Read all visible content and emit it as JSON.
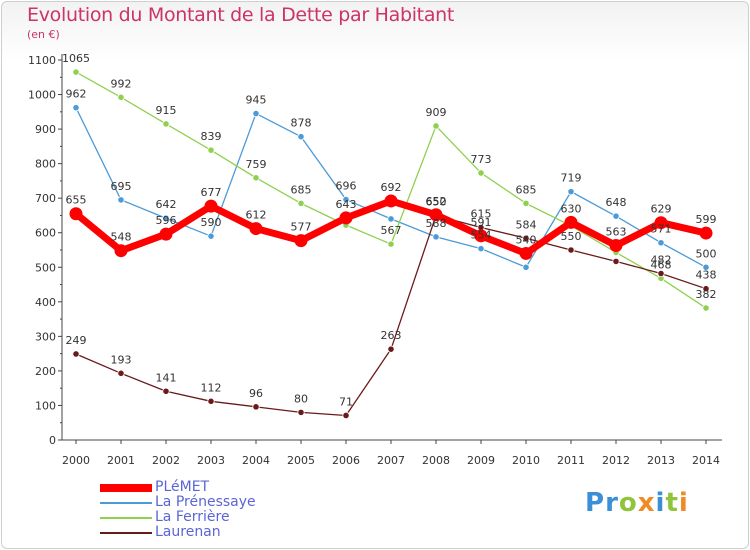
{
  "title": "Evolution du Montant de la Dette par Habitant",
  "subtitle": "(en €)",
  "logo": {
    "text": "Proxiti",
    "letters": [
      {
        "char": "P",
        "color": "#3a8fd8"
      },
      {
        "char": "r",
        "color": "#3a8fd8"
      },
      {
        "char": "o",
        "color": "#8fc43c"
      },
      {
        "char": "x",
        "color": "#f08a24"
      },
      {
        "char": "i",
        "color": "#3a8fd8"
      },
      {
        "char": "t",
        "color": "#8fc43c"
      },
      {
        "char": "i",
        "color": "#f08a24"
      }
    ]
  },
  "chart_data": {
    "type": "line",
    "title": "Evolution du Montant de la Dette par Habitant",
    "subtitle": "(en €)",
    "x": [
      "2000",
      "2001",
      "2002",
      "2003",
      "2004",
      "2005",
      "2006",
      "2007",
      "2008",
      "2009",
      "2010",
      "2011",
      "2012",
      "2013",
      "2014"
    ],
    "ylim": [
      0,
      1100
    ],
    "yticks": [
      0,
      100,
      200,
      300,
      400,
      500,
      600,
      700,
      800,
      900,
      1000,
      1100
    ],
    "grid": false,
    "legend_position": "bottom-left",
    "series": [
      {
        "name": "PLéMET",
        "color": "#ff0000",
        "thick": true,
        "values": [
          655,
          548,
          596,
          677,
          612,
          577,
          643,
          692,
          652,
          591,
          540,
          630,
          563,
          629,
          599
        ],
        "labels": [
          "655",
          "548",
          "596",
          "677",
          "612",
          "577",
          "643",
          "692",
          "652",
          "591",
          "540",
          "630",
          "563",
          "629",
          "599"
        ]
      },
      {
        "name": "La Prénessaye",
        "color": "#4d9ad8",
        "thick": false,
        "values": [
          962,
          695,
          642,
          590,
          945,
          878,
          696,
          640,
          588,
          554,
          500,
          719,
          648,
          571,
          500
        ],
        "labels": [
          "962",
          "695",
          "642",
          "590",
          "945",
          "878",
          "696",
          "",
          "588",
          "554",
          "",
          "719",
          "648",
          "571",
          "500"
        ]
      },
      {
        "name": "La Ferrière",
        "color": "#8fd14f",
        "thick": false,
        "values": [
          1065,
          992,
          915,
          839,
          759,
          685,
          622,
          567,
          909,
          773,
          685,
          620,
          543,
          468,
          382
        ],
        "labels": [
          "1065",
          "992",
          "915",
          "839",
          "759",
          "685",
          "",
          "567",
          "909",
          "773",
          "685",
          "",
          "",
          "468",
          "382"
        ]
      },
      {
        "name": "Laurenan",
        "color": "#6b1a1a",
        "thick": false,
        "values": [
          249,
          193,
          141,
          112,
          96,
          80,
          71,
          263,
          650,
          615,
          584,
          550,
          517,
          482,
          438
        ],
        "labels": [
          "249",
          "193",
          "141",
          "112",
          "96",
          "80",
          "71",
          "263",
          "650",
          "615",
          "584",
          "550",
          "",
          "482",
          "438"
        ]
      }
    ]
  }
}
